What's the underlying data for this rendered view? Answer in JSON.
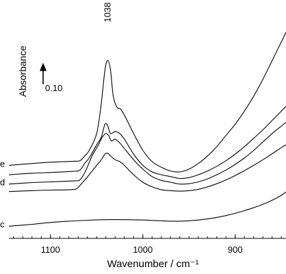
{
  "chart_data": {
    "type": "line",
    "xlabel": "Wavenumber / cm⁻¹",
    "ylabel": "Absorbance",
    "x_reversed": true,
    "xlim": [
      1145,
      845
    ],
    "ylim": [
      0,
      1.2
    ],
    "x_ticks": [
      1100,
      1000,
      900
    ],
    "x_tick_labels": [
      "1100",
      "1000",
      "900"
    ],
    "peak_annotation": {
      "text": "1038",
      "x": 1038
    },
    "scale_bar": {
      "label": "0.10",
      "value": 0.1
    },
    "series": [
      {
        "label": "e",
        "x": [
          1145,
          1120,
          1100,
          1075,
          1068,
          1063,
          1058,
          1050,
          1045,
          1041,
          1038,
          1035,
          1032,
          1028,
          1024,
          1018,
          1010,
          1000,
          990,
          980,
          970,
          960,
          950,
          940,
          930,
          920,
          910,
          900,
          890,
          880,
          870,
          860,
          850,
          845
        ],
        "y": [
          0.39,
          0.4,
          0.407,
          0.412,
          0.415,
          0.44,
          0.47,
          0.56,
          0.72,
          0.9,
          0.95,
          0.9,
          0.76,
          0.7,
          0.69,
          0.64,
          0.56,
          0.47,
          0.41,
          0.38,
          0.36,
          0.355,
          0.37,
          0.4,
          0.44,
          0.49,
          0.55,
          0.61,
          0.68,
          0.76,
          0.85,
          0.95,
          1.05,
          1.1
        ]
      },
      {
        "series_id": "unlabeled",
        "x": [
          1145,
          1120,
          1100,
          1075,
          1068,
          1063,
          1058,
          1050,
          1045,
          1041,
          1038,
          1035,
          1030,
          1025,
          1020,
          1010,
          1000,
          990,
          980,
          970,
          960,
          950,
          940,
          930,
          920,
          910,
          900,
          890,
          880,
          870,
          860,
          850,
          845
        ],
        "y": [
          0.34,
          0.348,
          0.352,
          0.358,
          0.365,
          0.4,
          0.43,
          0.5,
          0.54,
          0.61,
          0.6,
          0.56,
          0.57,
          0.56,
          0.53,
          0.45,
          0.39,
          0.355,
          0.34,
          0.33,
          0.32,
          0.325,
          0.34,
          0.36,
          0.385,
          0.415,
          0.45,
          0.49,
          0.535,
          0.58,
          0.63,
          0.68,
          0.705
        ]
      },
      {
        "label": "d",
        "x": [
          1145,
          1120,
          1100,
          1075,
          1068,
          1062,
          1055,
          1048,
          1044,
          1040,
          1037,
          1034,
          1030,
          1025,
          1020,
          1010,
          1000,
          990,
          980,
          970,
          960,
          950,
          940,
          930,
          920,
          910,
          900,
          890,
          880,
          870,
          860,
          850,
          845
        ],
        "y": [
          0.29,
          0.298,
          0.302,
          0.307,
          0.313,
          0.36,
          0.44,
          0.5,
          0.54,
          0.56,
          0.55,
          0.52,
          0.53,
          0.51,
          0.48,
          0.42,
          0.37,
          0.33,
          0.31,
          0.3,
          0.29,
          0.292,
          0.302,
          0.318,
          0.34,
          0.365,
          0.395,
          0.43,
          0.47,
          0.515,
          0.56,
          0.6,
          0.62
        ]
      },
      {
        "series_id": "unlabeled",
        "x": [
          1145,
          1120,
          1100,
          1080,
          1072,
          1065,
          1058,
          1050,
          1045,
          1041,
          1038,
          1035,
          1030,
          1025,
          1020,
          1010,
          1000,
          990,
          980,
          970,
          960,
          950,
          940,
          930,
          920,
          910,
          900,
          890,
          880,
          870,
          860,
          850,
          845
        ],
        "y": [
          0.25,
          0.255,
          0.258,
          0.26,
          0.265,
          0.3,
          0.34,
          0.39,
          0.42,
          0.45,
          0.455,
          0.44,
          0.42,
          0.41,
          0.39,
          0.34,
          0.3,
          0.275,
          0.26,
          0.255,
          0.252,
          0.255,
          0.262,
          0.275,
          0.292,
          0.312,
          0.336,
          0.362,
          0.39,
          0.42,
          0.452,
          0.485,
          0.5
        ]
      },
      {
        "label": "c",
        "x": [
          1145,
          1120,
          1100,
          1080,
          1060,
          1040,
          1020,
          1000,
          990,
          980,
          970,
          960,
          950,
          940,
          930,
          920,
          910,
          900,
          890,
          880,
          870,
          860,
          850,
          845
        ],
        "y": [
          0.065,
          0.075,
          0.085,
          0.092,
          0.097,
          0.1,
          0.1,
          0.098,
          0.096,
          0.094,
          0.092,
          0.092,
          0.094,
          0.098,
          0.104,
          0.112,
          0.122,
          0.134,
          0.148,
          0.164,
          0.182,
          0.204,
          0.23,
          0.248
        ]
      }
    ]
  }
}
